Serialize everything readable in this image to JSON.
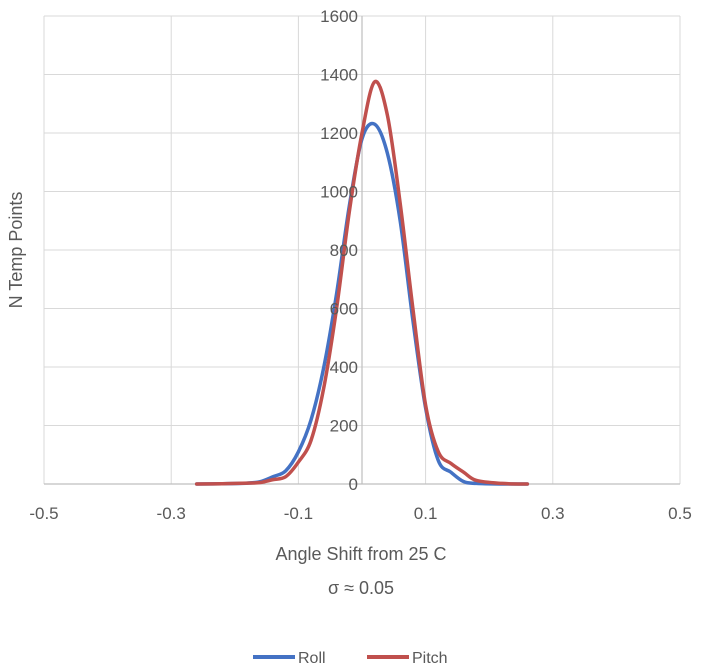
{
  "chart_data": {
    "type": "line",
    "title": "",
    "xlabel": "Angle Shift from 25 C",
    "xlabel_sub": "σ ≈ 0.05",
    "ylabel": "N Temp Points",
    "xlim": [
      -0.5,
      0.5
    ],
    "ylim": [
      0,
      1600
    ],
    "x_ticks": [
      "-0.5",
      "-0.3",
      "-0.1",
      "0.1",
      "0.3",
      "0.5"
    ],
    "x_tick_values": [
      -0.5,
      -0.3,
      -0.1,
      0.1,
      0.3,
      0.5
    ],
    "y_ticks": [
      "0",
      "200",
      "400",
      "600",
      "800",
      "1000",
      "1200",
      "1400",
      "1600"
    ],
    "y_tick_values": [
      0,
      200,
      400,
      600,
      800,
      1000,
      1200,
      1400,
      1600
    ],
    "grid": true,
    "legend_position": "bottom",
    "series": [
      {
        "name": "Roll",
        "color": "#4472C4",
        "points": [
          [
            -0.26,
            0
          ],
          [
            -0.22,
            1
          ],
          [
            -0.18,
            3
          ],
          [
            -0.16,
            8
          ],
          [
            -0.14,
            25
          ],
          [
            -0.12,
            45
          ],
          [
            -0.1,
            110
          ],
          [
            -0.08,
            220
          ],
          [
            -0.06,
            400
          ],
          [
            -0.04,
            650
          ],
          [
            -0.02,
            950
          ],
          [
            0.0,
            1180
          ],
          [
            0.02,
            1230
          ],
          [
            0.04,
            1130
          ],
          [
            0.06,
            900
          ],
          [
            0.08,
            560
          ],
          [
            0.1,
            260
          ],
          [
            0.12,
            80
          ],
          [
            0.14,
            40
          ],
          [
            0.16,
            8
          ],
          [
            0.18,
            2
          ],
          [
            0.22,
            0
          ],
          [
            0.26,
            0
          ]
        ]
      },
      {
        "name": "Pitch",
        "color": "#C0504D",
        "points": [
          [
            -0.26,
            0
          ],
          [
            -0.22,
            1
          ],
          [
            -0.18,
            3
          ],
          [
            -0.16,
            5
          ],
          [
            -0.14,
            15
          ],
          [
            -0.12,
            25
          ],
          [
            -0.1,
            75
          ],
          [
            -0.08,
            150
          ],
          [
            -0.06,
            330
          ],
          [
            -0.04,
            600
          ],
          [
            -0.02,
            930
          ],
          [
            0.0,
            1200
          ],
          [
            0.02,
            1375
          ],
          [
            0.04,
            1260
          ],
          [
            0.06,
            960
          ],
          [
            0.08,
            600
          ],
          [
            0.1,
            270
          ],
          [
            0.12,
            110
          ],
          [
            0.14,
            70
          ],
          [
            0.16,
            40
          ],
          [
            0.18,
            12
          ],
          [
            0.22,
            2
          ],
          [
            0.26,
            0
          ]
        ]
      }
    ]
  }
}
